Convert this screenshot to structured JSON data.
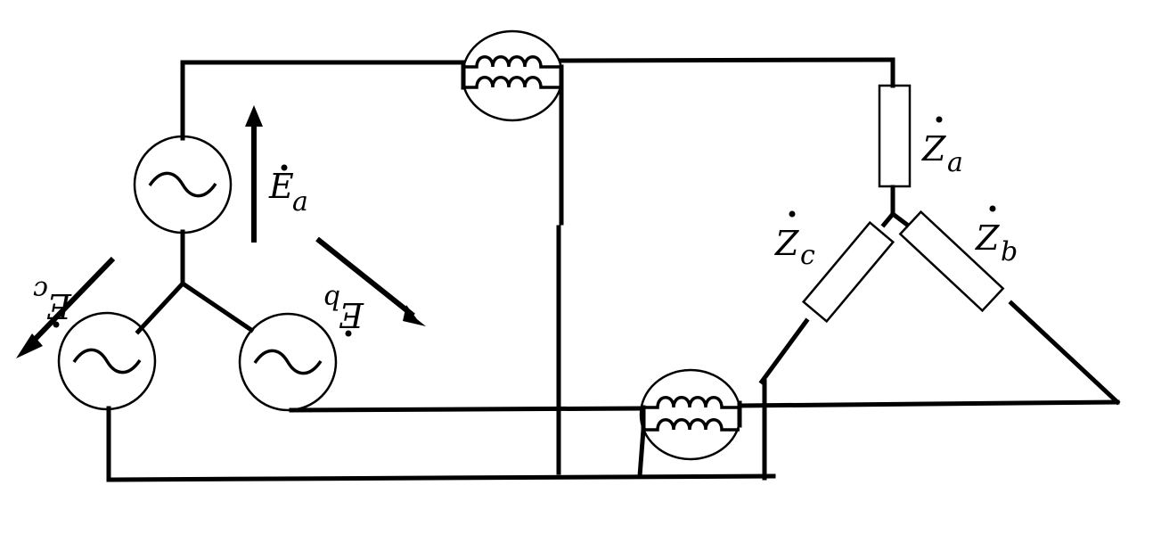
{
  "labels": {
    "Ea": {
      "main": "E",
      "sub": "a"
    },
    "Eb": {
      "main": "E",
      "sub": "b"
    },
    "Ec": {
      "main": "E",
      "sub": "c"
    },
    "Za": {
      "main": "Z",
      "sub": "a"
    },
    "Zb": {
      "main": "Z",
      "sub": "b"
    },
    "Zc": {
      "main": "Z",
      "sub": "c"
    }
  },
  "components": {
    "sources": [
      "source-a",
      "source-b",
      "source-c"
    ],
    "instruments": [
      "wattmeter-1",
      "wattmeter-2"
    ],
    "loads": [
      "impedance-a",
      "impedance-b",
      "impedance-c"
    ]
  },
  "colors": {
    "line": "#000000",
    "background": "#ffffff"
  }
}
